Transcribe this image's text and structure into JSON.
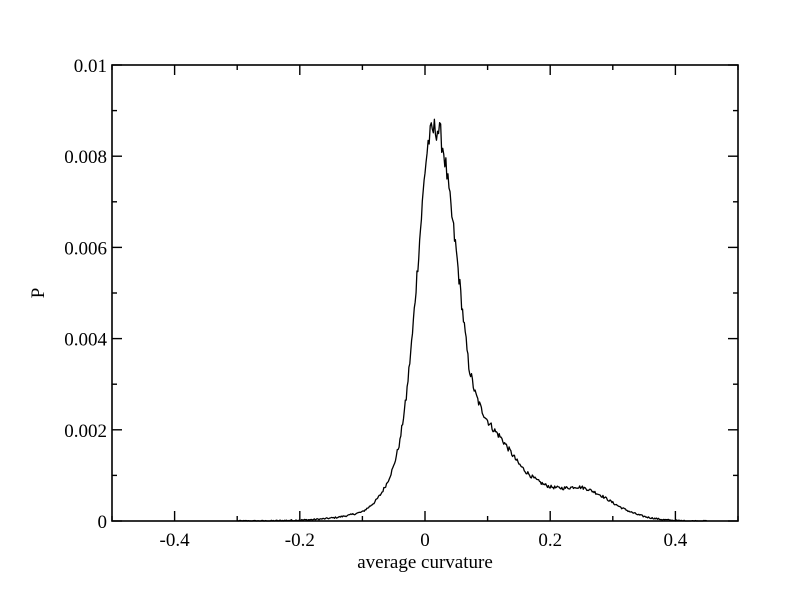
{
  "chart_data": {
    "type": "line",
    "title": "",
    "xlabel": "average curvature",
    "ylabel": "P",
    "xlim": [
      -0.5,
      0.5
    ],
    "ylim": [
      0,
      0.01
    ],
    "x_ticks": [
      -0.4,
      -0.2,
      0,
      0.2,
      0.4
    ],
    "x_tick_labels": [
      "-0.4",
      "-0.2",
      "0",
      "0.2",
      "0.4"
    ],
    "y_ticks": [
      0,
      0.002,
      0.004,
      0.006,
      0.008,
      0.01
    ],
    "y_tick_labels": [
      "0",
      "0.002",
      "0.004",
      "0.006",
      "0.008",
      "0.01"
    ],
    "grid": false,
    "legend": "none",
    "series": [
      {
        "color": "#000000",
        "x": [
          -0.3,
          -0.25,
          -0.2,
          -0.18,
          -0.16,
          -0.14,
          -0.12,
          -0.1,
          -0.09,
          -0.08,
          -0.07,
          -0.06,
          -0.05,
          -0.04,
          -0.03,
          -0.02,
          -0.01,
          0.0,
          0.005,
          0.01,
          0.015,
          0.02,
          0.025,
          0.03,
          0.035,
          0.04,
          0.05,
          0.06,
          0.07,
          0.08,
          0.09,
          0.1,
          0.11,
          0.12,
          0.13,
          0.14,
          0.15,
          0.16,
          0.17,
          0.18,
          0.19,
          0.2,
          0.21,
          0.22,
          0.23,
          0.24,
          0.25,
          0.26,
          0.27,
          0.28,
          0.29,
          0.3,
          0.31,
          0.32,
          0.33,
          0.34,
          0.35,
          0.36,
          0.37,
          0.38,
          0.39,
          0.4,
          0.42,
          0.45
        ],
        "y": [
          0.0,
          0.0,
          2e-05,
          3e-05,
          5e-05,
          8e-05,
          0.00013,
          0.0002,
          0.0003,
          0.00042,
          0.0006,
          0.00085,
          0.0012,
          0.00175,
          0.0027,
          0.0041,
          0.0059,
          0.0077,
          0.0083,
          0.0085,
          0.0086,
          0.0086,
          0.00845,
          0.0081,
          0.0076,
          0.007,
          0.0059,
          0.0046,
          0.0034,
          0.0028,
          0.00245,
          0.0022,
          0.002,
          0.00185,
          0.00165,
          0.00145,
          0.00125,
          0.0011,
          0.00098,
          0.00088,
          0.0008,
          0.00075,
          0.00073,
          0.00072,
          0.00073,
          0.00075,
          0.00074,
          0.0007,
          0.00064,
          0.00057,
          0.00049,
          0.0004,
          0.00032,
          0.00025,
          0.00019,
          0.00014,
          0.0001,
          7e-05,
          5e-05,
          3e-05,
          2e-05,
          1e-05,
          0.0,
          0.0
        ]
      }
    ]
  }
}
